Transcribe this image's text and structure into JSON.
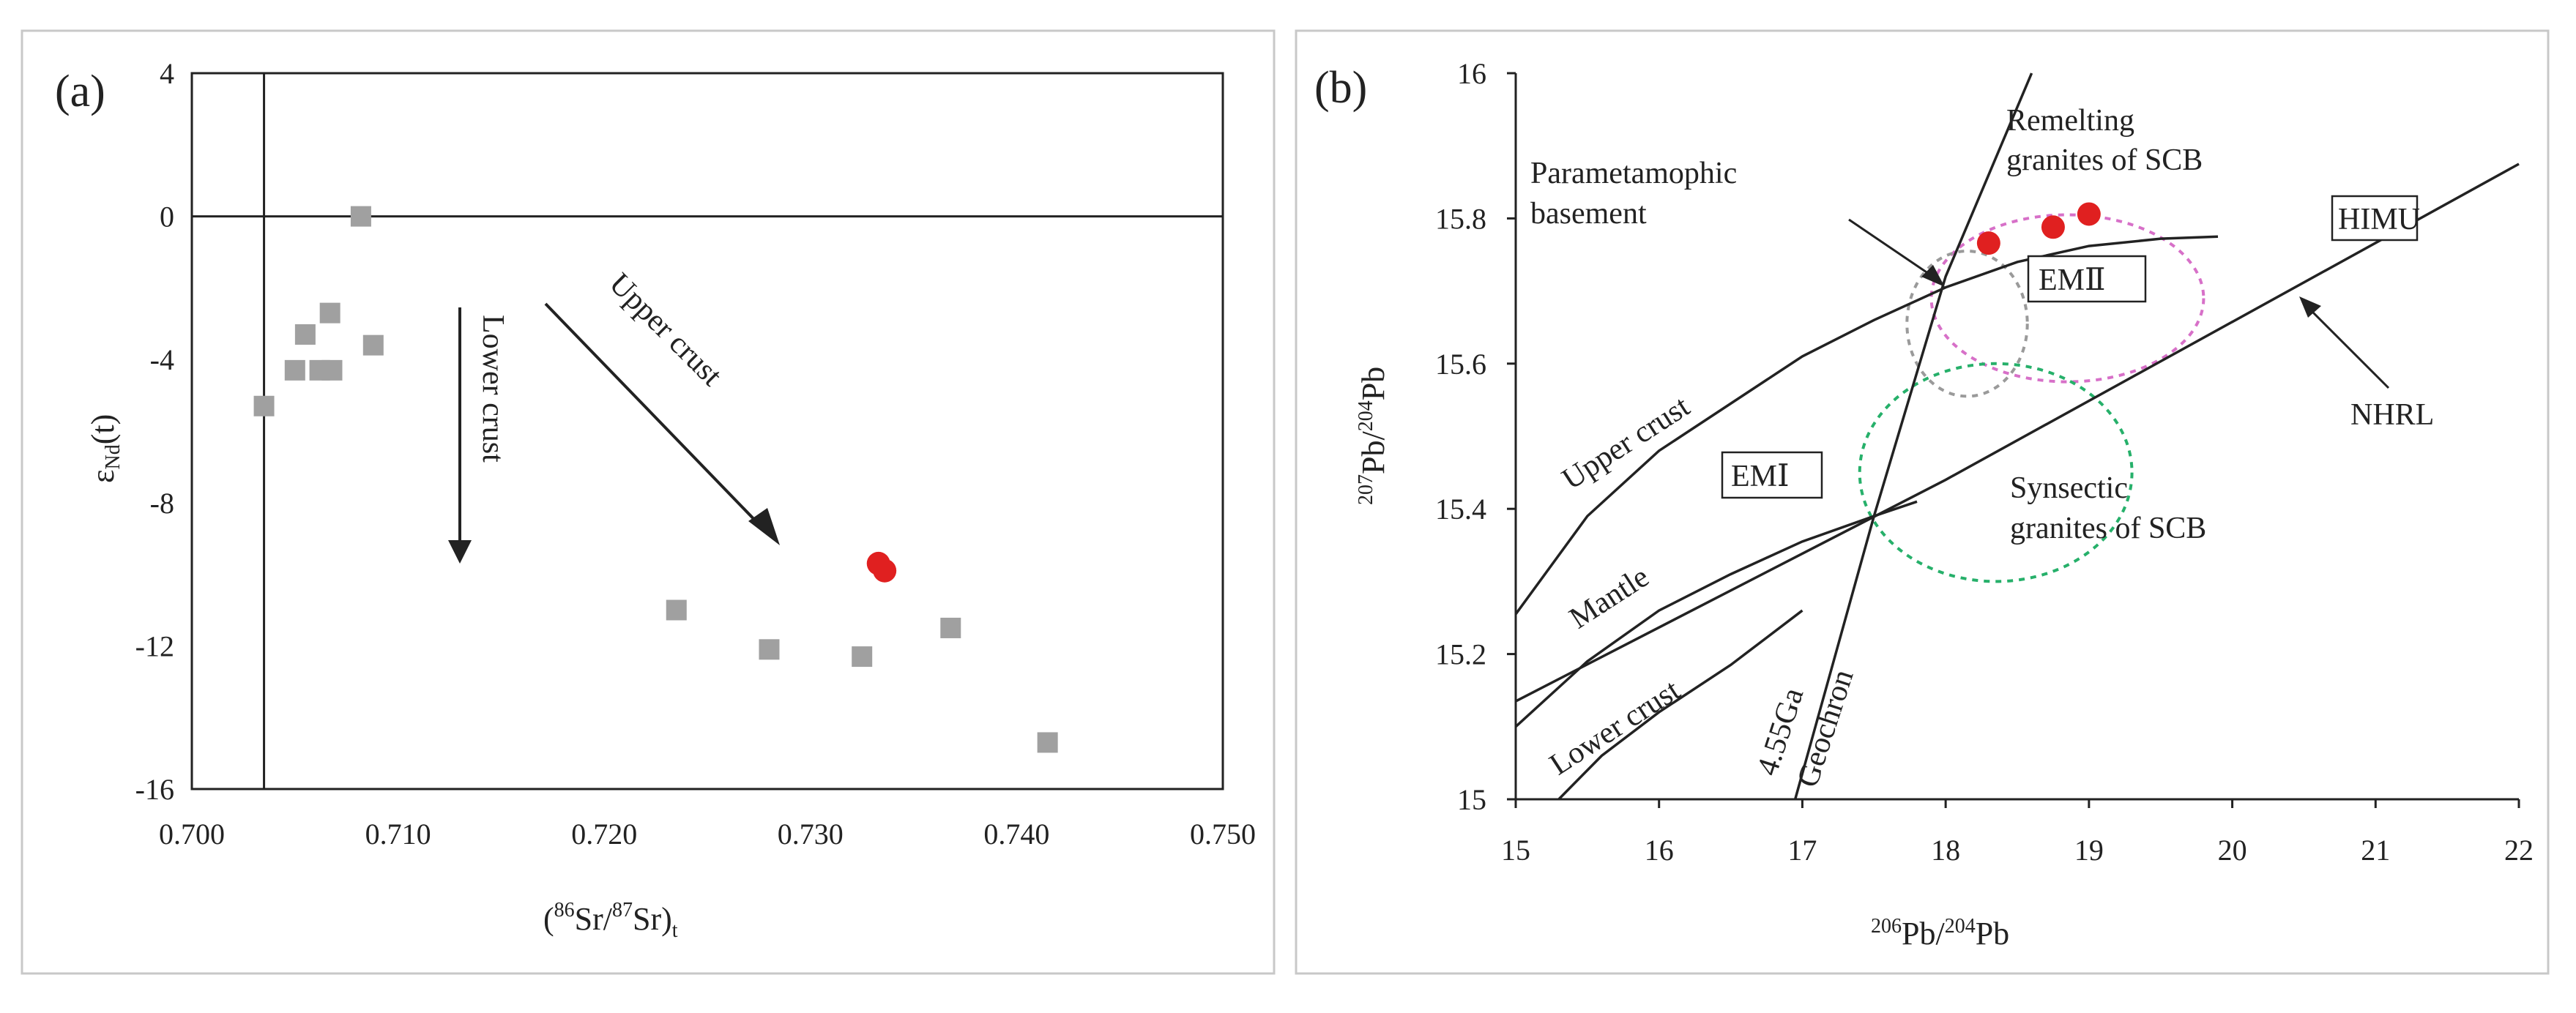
{
  "colors": {
    "grey_marker": "#a0a0a0",
    "red_marker": "#e02020",
    "pink_dashed": "#d770c8",
    "green_dashed": "#26b06a",
    "axis": "#222222",
    "frame": "#c8c8c8"
  },
  "chart_data": [
    {
      "type": "scatter",
      "panel_label": "(a)",
      "xlabel": {
        "pre": "(",
        "sup1": "86",
        "mid": "Sr/",
        "sup2": "87",
        "mid2": "Sr)",
        "sub": "t"
      },
      "ylabel": {
        "main": "ε",
        "sub": "Nd",
        "tail": "(t)"
      },
      "xlim": [
        0.7,
        0.75
      ],
      "ylim": [
        -16,
        4
      ],
      "x_ticks": [
        0.7,
        0.71,
        0.72,
        0.73,
        0.74,
        0.75
      ],
      "x_tick_labels": [
        "0.700",
        "0.710",
        "0.720",
        "0.730",
        "0.740",
        "0.750"
      ],
      "y_ticks": [
        4,
        0,
        -4,
        -8,
        -12,
        -16
      ],
      "y_tick_labels": [
        "4",
        "0",
        "-4",
        "-8",
        "-12",
        "-16"
      ],
      "reference_lines": {
        "vertical_x": 0.7035,
        "horizontal_y": 0
      },
      "series": [
        {
          "marker": "square",
          "color": "#a0a0a0",
          "points": [
            [
              0.7035,
              -5.3
            ],
            [
              0.705,
              -4.3
            ],
            [
              0.7055,
              -3.3
            ],
            [
              0.7062,
              -4.3
            ],
            [
              0.7068,
              -4.3
            ],
            [
              0.7067,
              -2.7
            ],
            [
              0.7082,
              0.0
            ],
            [
              0.7088,
              -3.6
            ],
            [
              0.7235,
              -11.0
            ],
            [
              0.728,
              -12.1
            ],
            [
              0.7325,
              -12.3
            ],
            [
              0.7368,
              -11.5
            ],
            [
              0.7415,
              -14.7
            ]
          ]
        },
        {
          "marker": "circle",
          "color": "#e02020",
          "points": [
            [
              0.7333,
              -9.7
            ],
            [
              0.7336,
              -9.9
            ]
          ]
        }
      ],
      "annotations": [
        {
          "text": "Lower crust",
          "arrow": "down"
        },
        {
          "text": "Upper crust",
          "arrow": "down-right"
        }
      ]
    },
    {
      "type": "scatter",
      "panel_label": "(b)",
      "xlabel": {
        "sup1": "206",
        "mid": "Pb/",
        "sup2": "204",
        "tail": "Pb"
      },
      "ylabel": {
        "sup1": "207",
        "mid": "Pb/",
        "sup2": "204",
        "tail": "Pb"
      },
      "xlim": [
        15,
        22
      ],
      "ylim": [
        15,
        16
      ],
      "x_ticks": [
        15,
        16,
        17,
        18,
        19,
        20,
        21,
        22
      ],
      "x_tick_labels": [
        "15",
        "16",
        "17",
        "18",
        "19",
        "20",
        "21",
        "22"
      ],
      "y_ticks": [
        16,
        15.8,
        15.6,
        15.4,
        15.2,
        15
      ],
      "y_tick_labels": [
        "16",
        "15.8",
        "15.6",
        "15.4",
        "15.2",
        "15"
      ],
      "series": [
        {
          "marker": "circle",
          "color": "#e02020",
          "points": [
            [
              18.3,
              15.766
            ],
            [
              18.75,
              15.788
            ],
            [
              19.0,
              15.806
            ]
          ]
        }
      ],
      "curves": [
        {
          "name": "Upper crust",
          "points": [
            [
              15.0,
              15.255
            ],
            [
              15.5,
              15.39
            ],
            [
              16.0,
              15.48
            ],
            [
              16.5,
              15.545
            ],
            [
              17.0,
              15.61
            ],
            [
              17.5,
              15.66
            ],
            [
              18.0,
              15.705
            ],
            [
              18.5,
              15.74
            ],
            [
              19.0,
              15.762
            ],
            [
              19.5,
              15.772
            ],
            [
              19.9,
              15.775
            ]
          ]
        },
        {
          "name": "Mantle",
          "points": [
            [
              15.0,
              15.1
            ],
            [
              15.5,
              15.19
            ],
            [
              16.0,
              15.26
            ],
            [
              16.5,
              15.31
            ],
            [
              17.0,
              15.355
            ],
            [
              17.5,
              15.39
            ],
            [
              17.8,
              15.41
            ]
          ]
        },
        {
          "name": "Lower crust",
          "points": [
            [
              15.3,
              15.0
            ],
            [
              15.6,
              15.06
            ],
            [
              16.0,
              15.12
            ],
            [
              16.5,
              15.185
            ],
            [
              17.0,
              15.26
            ]
          ]
        },
        {
          "name": "NHRL",
          "points": [
            [
              15.0,
              15.135
            ],
            [
              18.0,
              15.44
            ],
            [
              22.0,
              15.875
            ]
          ]
        },
        {
          "name": "4.55Ga Geochron",
          "points": [
            [
              16.95,
              15.0
            ],
            [
              17.5,
              15.39
            ],
            [
              18.0,
              15.72
            ],
            [
              18.6,
              16.0
            ]
          ]
        }
      ],
      "ellipses": [
        {
          "label": "Remelting granites of SCB",
          "center": [
            18.85,
            15.69
          ],
          "rx": 0.95,
          "ry": 0.115,
          "color": "#d770c8"
        },
        {
          "label": "Parametamophic basement",
          "center": [
            18.15,
            15.655
          ],
          "rx": 0.42,
          "ry": 0.1,
          "color": "#9a9a9a"
        },
        {
          "label": "Synsectic granites of SCB",
          "center": [
            18.35,
            15.45
          ],
          "rx": 0.95,
          "ry": 0.15,
          "color": "#26b06a"
        }
      ],
      "labels": {
        "parametamophic": [
          "Parametamophic",
          "basement"
        ],
        "remelting": [
          "Remelting",
          "granites of SCB"
        ],
        "synsectic": [
          "Synsectic",
          "granites of SCB"
        ],
        "upper_crust": "Upper crust",
        "mantle": "Mantle",
        "lower_crust": "Lower crust",
        "geochron": [
          "4.55Ga",
          "Geochron"
        ],
        "nhrl": "NHRL",
        "himu": "HIMU",
        "em1": "EMⅠ",
        "em2": "EMⅡ"
      }
    }
  ]
}
